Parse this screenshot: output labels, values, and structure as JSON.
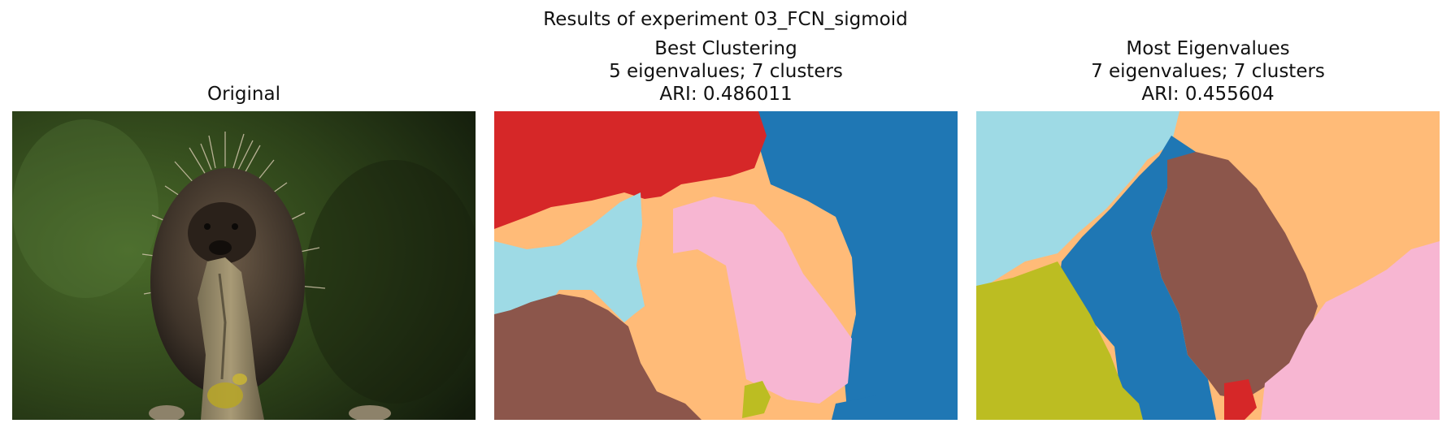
{
  "figure": {
    "suptitle": "Results of experiment 03_FCN_sigmoid"
  },
  "panels": [
    {
      "title": "Original"
    },
    {
      "title_line1": "Best Clustering",
      "title_line2": "5 eigenvalues; 7 clusters",
      "title_line3": "ARI: 0.486011"
    },
    {
      "title_line1": "Most Eigenvalues",
      "title_line2": "7 eigenvalues; 7 clusters",
      "title_line3": "ARI: 0.455604"
    }
  ],
  "palette": {
    "blue": "#1f77b4",
    "red": "#d62728",
    "light_cyan": "#9edae5",
    "light_orange": "#ffbb78",
    "pink": "#f7b6d2",
    "brown": "#8c564b",
    "olive": "#bcbd22",
    "forest_dark": "#1f2c12",
    "forest_green": "#3f5a22"
  }
}
